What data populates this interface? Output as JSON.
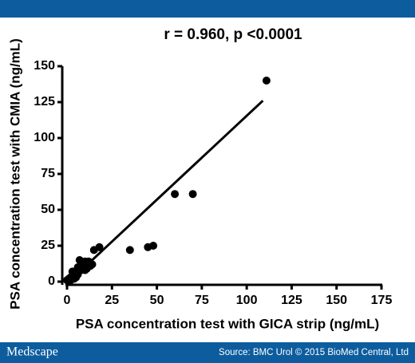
{
  "brand": "Medscape",
  "source": "Source: BMC Urol © 2015 BioMed Central, Ltd",
  "chart_data": {
    "type": "scatter",
    "title": "r = 0.960, p <0.0001",
    "x_label": "PSA concentration test with GICA strip (ng/mL)",
    "y_label": "PSA concentration test with CMIA (ng/mL)",
    "color": "#000000",
    "x": [
      111,
      60,
      70,
      48,
      45,
      35,
      18,
      15,
      7,
      10,
      12,
      9,
      11,
      8,
      5,
      4,
      3,
      2,
      1,
      0,
      2,
      5,
      6,
      8,
      13,
      10,
      14,
      3,
      6,
      9,
      1,
      4
    ],
    "y": [
      140,
      61,
      61,
      25,
      24,
      22,
      24,
      22,
      15,
      14,
      14,
      12,
      9,
      8,
      6,
      5,
      4,
      3,
      2,
      1,
      1,
      3,
      10,
      12,
      11,
      8,
      12,
      7,
      5,
      10,
      0,
      2
    ],
    "trend_line": {
      "x": [
        2,
        109
      ],
      "y": [
        1,
        126
      ]
    },
    "xlim": [
      0,
      175
    ],
    "ylim": [
      0,
      150
    ],
    "xticks": [
      0,
      25,
      50,
      75,
      100,
      125,
      150,
      175
    ],
    "yticks": [
      0,
      25,
      50,
      75,
      100,
      125,
      150
    ]
  }
}
